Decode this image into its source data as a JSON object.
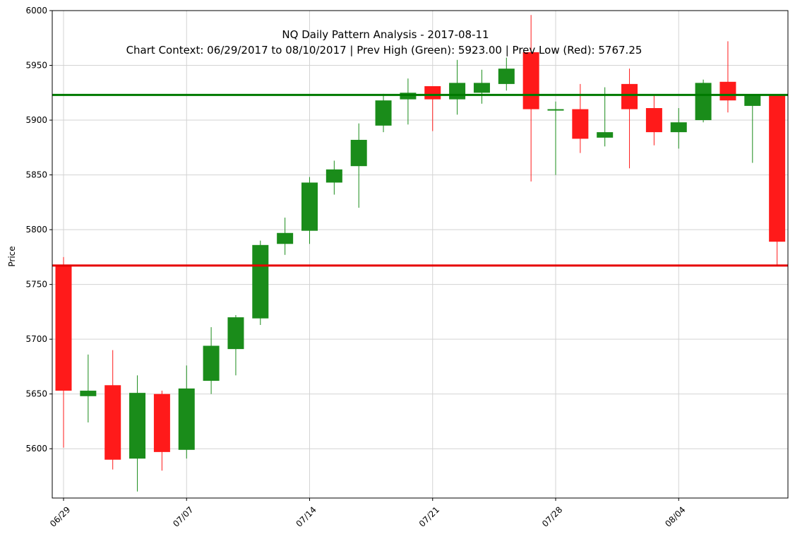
{
  "chart_data": {
    "type": "candlestick",
    "title": "NQ Daily Pattern Analysis - 2017-08-11",
    "subtitle": "Chart Context: 06/29/2017 to 08/10/2017 | Prev High (Green): 5923.00 | Prev Low (Red): 5767.25",
    "xlabel": "",
    "ylabel": "Price",
    "ylim": [
      5555,
      6000
    ],
    "yticks": [
      5600,
      5650,
      5700,
      5750,
      5800,
      5850,
      5900,
      5950,
      6000
    ],
    "grid": true,
    "xticks": [
      {
        "index": 0,
        "label": "06/29"
      },
      {
        "index": 5,
        "label": "07/07"
      },
      {
        "index": 10,
        "label": "07/14"
      },
      {
        "index": 15,
        "label": "07/21"
      },
      {
        "index": 20,
        "label": "07/28"
      },
      {
        "index": 25,
        "label": "08/04"
      }
    ],
    "up_color": "#1a8c1a",
    "down_color": "#ff1a1a",
    "candles": [
      {
        "o": 5767,
        "h": 5775,
        "l": 5601,
        "c": 5653
      },
      {
        "o": 5648,
        "h": 5686,
        "l": 5624,
        "c": 5653
      },
      {
        "o": 5658,
        "h": 5690,
        "l": 5581,
        "c": 5590
      },
      {
        "o": 5591,
        "h": 5667,
        "l": 5561,
        "c": 5651
      },
      {
        "o": 5650,
        "h": 5653,
        "l": 5580,
        "c": 5597
      },
      {
        "o": 5599,
        "h": 5676,
        "l": 5591,
        "c": 5655
      },
      {
        "o": 5662,
        "h": 5711,
        "l": 5650,
        "c": 5694
      },
      {
        "o": 5691,
        "h": 5722,
        "l": 5667,
        "c": 5720
      },
      {
        "o": 5719,
        "h": 5790,
        "l": 5713,
        "c": 5786
      },
      {
        "o": 5787,
        "h": 5811,
        "l": 5777,
        "c": 5797
      },
      {
        "o": 5799,
        "h": 5848,
        "l": 5787,
        "c": 5843
      },
      {
        "o": 5843,
        "h": 5863,
        "l": 5832,
        "c": 5855
      },
      {
        "o": 5858,
        "h": 5897,
        "l": 5820,
        "c": 5882
      },
      {
        "o": 5895,
        "h": 5924,
        "l": 5889,
        "c": 5918
      },
      {
        "o": 5919,
        "h": 5938,
        "l": 5896,
        "c": 5925
      },
      {
        "o": 5931,
        "h": 5931,
        "l": 5890,
        "c": 5919
      },
      {
        "o": 5919,
        "h": 5955,
        "l": 5905,
        "c": 5934
      },
      {
        "o": 5925,
        "h": 5946,
        "l": 5915,
        "c": 5934
      },
      {
        "o": 5933,
        "h": 5957,
        "l": 5927,
        "c": 5947
      },
      {
        "o": 5962,
        "h": 5996,
        "l": 5844,
        "c": 5910
      },
      {
        "o": 5909,
        "h": 5917,
        "l": 5850,
        "c": 5910
      },
      {
        "o": 5910,
        "h": 5933,
        "l": 5870,
        "c": 5883
      },
      {
        "o": 5884,
        "h": 5930,
        "l": 5876,
        "c": 5889
      },
      {
        "o": 5933,
        "h": 5947,
        "l": 5856,
        "c": 5910
      },
      {
        "o": 5911,
        "h": 5923,
        "l": 5877,
        "c": 5889
      },
      {
        "o": 5889,
        "h": 5911,
        "l": 5874,
        "c": 5898
      },
      {
        "o": 5900,
        "h": 5937,
        "l": 5898,
        "c": 5934
      },
      {
        "o": 5935,
        "h": 5972,
        "l": 5907,
        "c": 5918
      },
      {
        "o": 5913,
        "h": 5923,
        "l": 5861,
        "c": 5923
      },
      {
        "o": 5923,
        "h": 5923,
        "l": 5767,
        "c": 5789
      }
    ],
    "hlines": [
      {
        "name": "Prev High (Green)",
        "value": 5923.0,
        "color": "#007a00"
      },
      {
        "name": "Prev Low (Red)",
        "value": 5767.25,
        "color": "#e60000"
      }
    ]
  }
}
